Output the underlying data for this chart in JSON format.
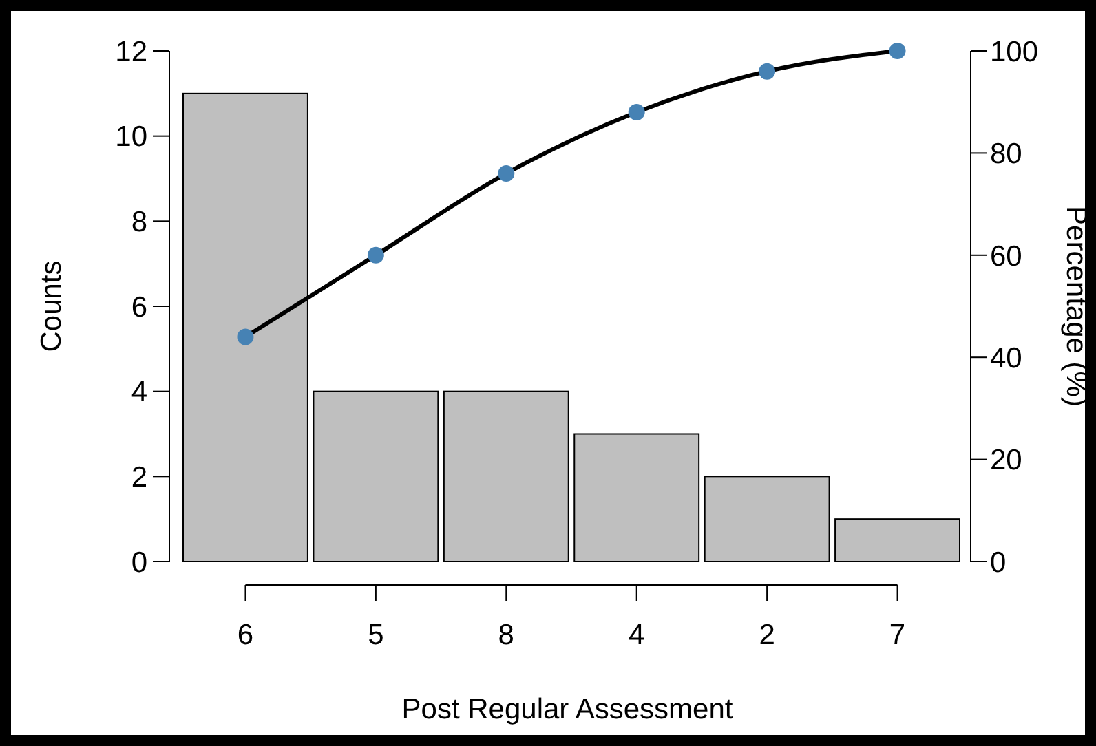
{
  "chart_data": {
    "type": "bar",
    "xlabel": "Post Regular Assessment",
    "ylabel": "Counts",
    "y2label": "Percentage (%)",
    "categories": [
      "6",
      "5",
      "8",
      "4",
      "2",
      "7"
    ],
    "series": [
      {
        "color": "#bfbfbf",
        "values": [
          11,
          4,
          4,
          3,
          2,
          1
        ]
      },
      {
        "type": "line",
        "axis": "y2",
        "color": "#000000",
        "colors": [
          "#4682b4",
          "#4682b4",
          "#4682b4",
          "#4682b4",
          "#4682b4",
          "#4682b4"
        ],
        "values": [
          44,
          60,
          76,
          88,
          96,
          100
        ]
      }
    ],
    "ylim": [
      0,
      12
    ],
    "yticks": [
      0,
      2,
      4,
      6,
      8,
      10,
      12
    ],
    "y2lim": [
      0,
      100
    ],
    "y2ticks": [
      0,
      20,
      40,
      60,
      80,
      100
    ],
    "marker": "circle",
    "grid": false
  }
}
